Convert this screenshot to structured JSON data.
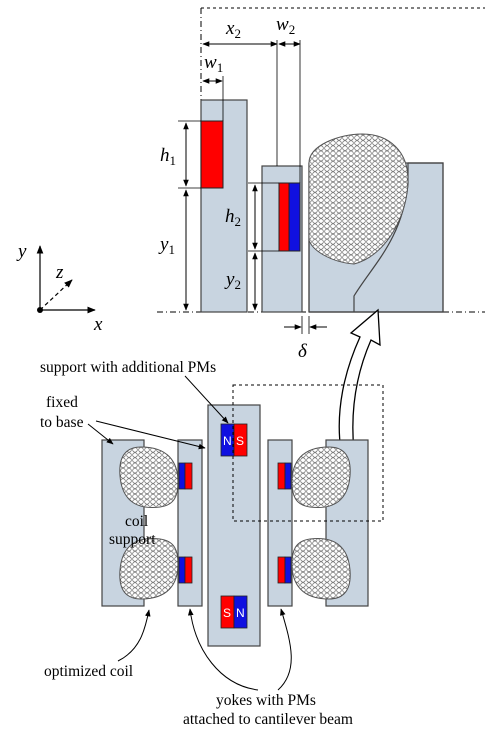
{
  "dimensions": {
    "x2": {
      "sym": "x",
      "sub": "2"
    },
    "w2": {
      "sym": "w",
      "sub": "2"
    },
    "w1": {
      "sym": "w",
      "sub": "1"
    },
    "h1": {
      "sym": "h",
      "sub": "1"
    },
    "h2": {
      "sym": "h",
      "sub": "2"
    },
    "y1": {
      "sym": "y",
      "sub": "1"
    },
    "y2": {
      "sym": "y",
      "sub": "2"
    },
    "delta": "δ"
  },
  "axes": {
    "x": "x",
    "y": "y",
    "z": "z"
  },
  "labels": {
    "support_pms": "support with additional PMs",
    "fixed_line1": "fixed",
    "fixed_line2": "to base",
    "coil_line1": "coil",
    "coil_line2": "support",
    "optimized_coil": "optimized coil",
    "yokes_line1": "yokes with PMs",
    "yokes_line2": "attached to cantilever beam"
  },
  "magnets": {
    "top_left": "N",
    "top_right": "S",
    "bottom_left": "S",
    "bottom_right": "N"
  },
  "colors": {
    "part_fill": "#c8d4e0",
    "magnet_red": "#ff0000",
    "magnet_blue": "#1010e0",
    "outline": "#444444"
  }
}
